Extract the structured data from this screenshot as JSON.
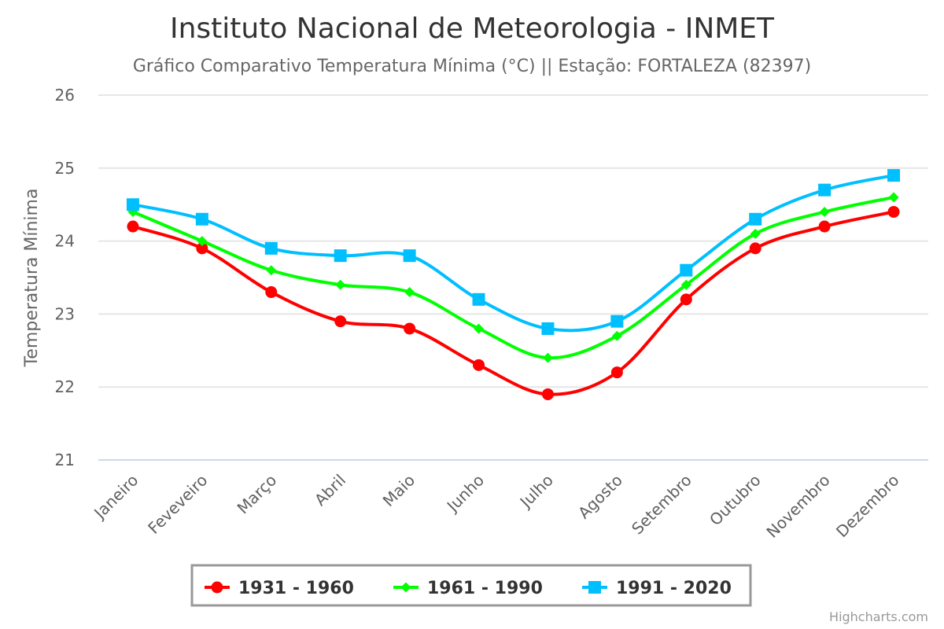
{
  "chart_data": {
    "type": "line",
    "title": "Instituto Nacional de Meteorologia - INMET",
    "subtitle": "Gráfico Comparativo Temperatura Mínima (°C) || Estação: FORTALEZA (82397)",
    "xlabel": "",
    "ylabel": "Temperatura Mínima",
    "ylim": [
      21,
      26
    ],
    "yticks": [
      21,
      22,
      23,
      24,
      25,
      26
    ],
    "grid": true,
    "legend_position": "bottom-center",
    "categories": [
      "Janeiro",
      "Feveveiro",
      "Março",
      "Abril",
      "Maio",
      "Junho",
      "Julho",
      "Agosto",
      "Setembro",
      "Outubro",
      "Novembro",
      "Dezembro"
    ],
    "series": [
      {
        "name": "1931 - 1960",
        "color": "#ff0000",
        "marker": "circle",
        "values": [
          24.2,
          23.9,
          23.3,
          22.9,
          22.8,
          22.3,
          21.9,
          22.2,
          23.2,
          23.9,
          24.2,
          24.4
        ]
      },
      {
        "name": "1961 - 1990",
        "color": "#00ff00",
        "marker": "diamond",
        "values": [
          24.4,
          24.0,
          23.6,
          23.4,
          23.3,
          22.8,
          22.4,
          22.7,
          23.4,
          24.1,
          24.4,
          24.6
        ]
      },
      {
        "name": "1991 - 2020",
        "color": "#00bfff",
        "marker": "square",
        "values": [
          24.5,
          24.3,
          23.9,
          23.8,
          23.8,
          23.2,
          22.8,
          22.9,
          23.6,
          24.3,
          24.7,
          24.9
        ]
      }
    ],
    "credits": "Highcharts.com"
  }
}
